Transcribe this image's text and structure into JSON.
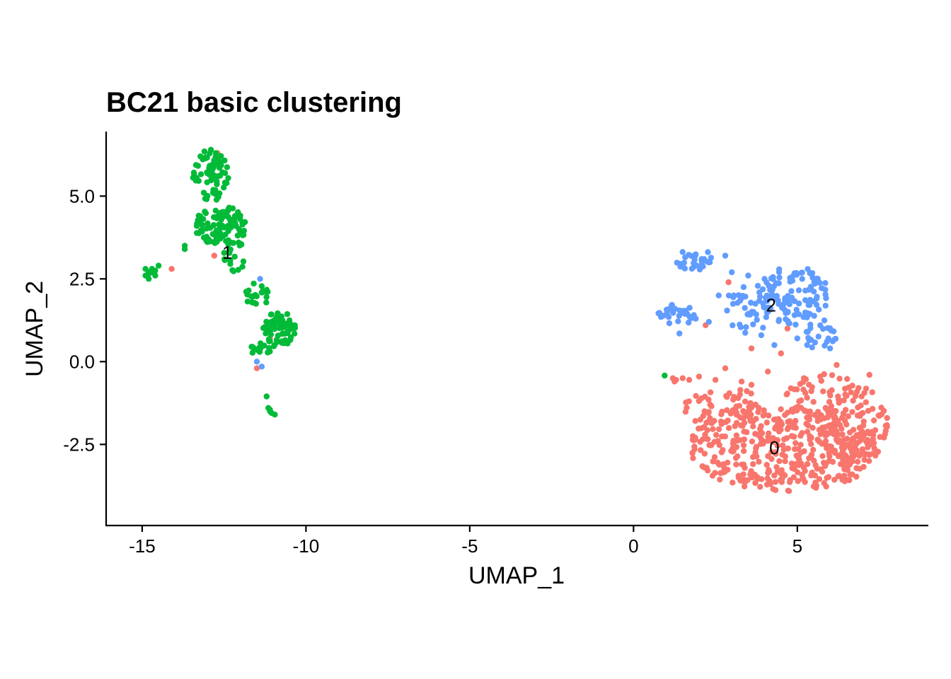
{
  "chart_data": {
    "type": "scatter",
    "title": "BC21 basic clustering",
    "xlabel": "UMAP_1",
    "ylabel": "UMAP_2",
    "xlim": [
      -16.1,
      9.0
    ],
    "ylim": [
      -4.95,
      6.95
    ],
    "xticks": [
      -15,
      -10,
      -5,
      0,
      5
    ],
    "xtick_labels": [
      "-15",
      "-10",
      "-5",
      "0",
      "5"
    ],
    "yticks": [
      -2.5,
      0.0,
      2.5,
      5.0
    ],
    "ytick_labels": [
      "-2.5",
      "0.0",
      "2.5",
      "5.0"
    ],
    "grid": false,
    "legend": "none",
    "cluster_labels": [
      {
        "text": "0",
        "x": 4.3,
        "y": -2.6
      },
      {
        "text": "1",
        "x": -12.4,
        "y": 3.3
      },
      {
        "text": "2",
        "x": 4.2,
        "y": 1.7
      }
    ],
    "series": [
      {
        "cluster": "0",
        "color": "#F8766D",
        "regions": [
          {
            "cx": 4.6,
            "cy": -2.6,
            "rx": 2.9,
            "ry": 1.35,
            "n": 430
          },
          {
            "cx": 6.8,
            "cy": -1.9,
            "rx": 1.0,
            "ry": 1.2,
            "n": 90
          },
          {
            "cx": 2.8,
            "cy": -1.4,
            "rx": 1.3,
            "ry": 0.6,
            "n": 50
          },
          {
            "cx": 5.6,
            "cy": -0.8,
            "rx": 1.3,
            "ry": 0.5,
            "n": 30
          }
        ],
        "points": [
          [
            1.2,
            -0.5
          ],
          [
            1.3,
            -0.55
          ],
          [
            1.25,
            -0.6
          ],
          [
            1.5,
            -0.5
          ],
          [
            1.7,
            -0.55
          ],
          [
            2.0,
            -0.45
          ],
          [
            2.5,
            -0.55
          ],
          [
            2.8,
            -0.2
          ],
          [
            3.3,
            -0.6
          ],
          [
            3.6,
            -0.7
          ],
          [
            2.3,
            3.0
          ],
          [
            2.9,
            2.4
          ],
          [
            2.2,
            1.1
          ],
          [
            4.7,
            1.0
          ],
          [
            3.6,
            0.4
          ],
          [
            4.5,
            0.25
          ],
          [
            5.7,
            -0.45
          ],
          [
            5.2,
            -0.5
          ],
          [
            4.1,
            -0.3
          ],
          [
            6.2,
            -0.1
          ],
          [
            6.0,
            -1.6
          ],
          [
            7.2,
            -0.4
          ],
          [
            -14.1,
            2.8
          ],
          [
            -12.7,
            6.3
          ],
          [
            -11.5,
            -0.2
          ],
          [
            -11.1,
            0.7
          ],
          [
            -12.8,
            3.2
          ]
        ]
      },
      {
        "cluster": "1",
        "color": "#00BA38",
        "regions": [
          {
            "cx": -12.9,
            "cy": 5.6,
            "rx": 0.55,
            "ry": 0.75,
            "n": 70
          },
          {
            "cx": -12.6,
            "cy": 4.1,
            "rx": 0.8,
            "ry": 0.6,
            "n": 100
          },
          {
            "cx": -12.2,
            "cy": 3.2,
            "rx": 0.35,
            "ry": 0.5,
            "n": 22
          },
          {
            "cx": -11.5,
            "cy": 2.0,
            "rx": 0.35,
            "ry": 0.4,
            "n": 22
          },
          {
            "cx": -10.8,
            "cy": 1.0,
            "rx": 0.55,
            "ry": 0.5,
            "n": 60
          },
          {
            "cx": -11.3,
            "cy": 0.4,
            "rx": 0.45,
            "ry": 0.2,
            "n": 18
          }
        ],
        "points": [
          [
            -14.8,
            2.7
          ],
          [
            -14.9,
            2.6
          ],
          [
            -14.8,
            2.5
          ],
          [
            -14.7,
            2.8
          ],
          [
            -14.6,
            2.6
          ],
          [
            -14.9,
            2.8
          ],
          [
            -14.7,
            2.7
          ],
          [
            -14.5,
            2.9
          ],
          [
            -14.8,
            2.65
          ],
          [
            -14.6,
            2.75
          ],
          [
            -13.7,
            3.5
          ],
          [
            -13.7,
            3.4
          ],
          [
            -11.2,
            -1.05
          ],
          [
            -11.15,
            -1.4
          ],
          [
            -11.1,
            -1.5
          ],
          [
            -11.05,
            -1.55
          ],
          [
            -10.95,
            -1.6
          ],
          [
            -11.1,
            -1.45
          ],
          [
            0.95,
            -0.42
          ],
          [
            -12.9,
            6.4
          ],
          [
            -13.1,
            6.35
          ],
          [
            -12.75,
            6.3
          ]
        ]
      },
      {
        "cluster": "2",
        "color": "#619CFF",
        "regions": [
          {
            "cx": 4.9,
            "cy": 2.0,
            "rx": 1.05,
            "ry": 0.9,
            "n": 110
          },
          {
            "cx": 3.5,
            "cy": 1.6,
            "rx": 0.7,
            "ry": 0.8,
            "n": 40
          },
          {
            "cx": 1.9,
            "cy": 3.1,
            "rx": 0.7,
            "ry": 0.35,
            "n": 28
          },
          {
            "cx": 1.3,
            "cy": 1.4,
            "rx": 0.55,
            "ry": 0.35,
            "n": 28
          },
          {
            "cx": 5.7,
            "cy": 0.8,
            "rx": 0.5,
            "ry": 0.5,
            "n": 22
          }
        ],
        "points": [
          [
            2.6,
            2.0
          ],
          [
            2.3,
            1.2
          ],
          [
            1.9,
            1.3
          ],
          [
            1.4,
            0.85
          ],
          [
            3.0,
            2.7
          ],
          [
            2.8,
            3.2
          ],
          [
            3.5,
            2.6
          ],
          [
            4.0,
            2.5
          ],
          [
            4.3,
            0.5
          ],
          [
            3.9,
            0.8
          ],
          [
            5.0,
            0.7
          ],
          [
            5.3,
            0.5
          ],
          [
            6.0,
            0.4
          ],
          [
            5.9,
            0.6
          ],
          [
            -11.4,
            2.5
          ],
          [
            -11.5,
            0.0
          ],
          [
            -11.35,
            -0.15
          ]
        ]
      }
    ]
  }
}
